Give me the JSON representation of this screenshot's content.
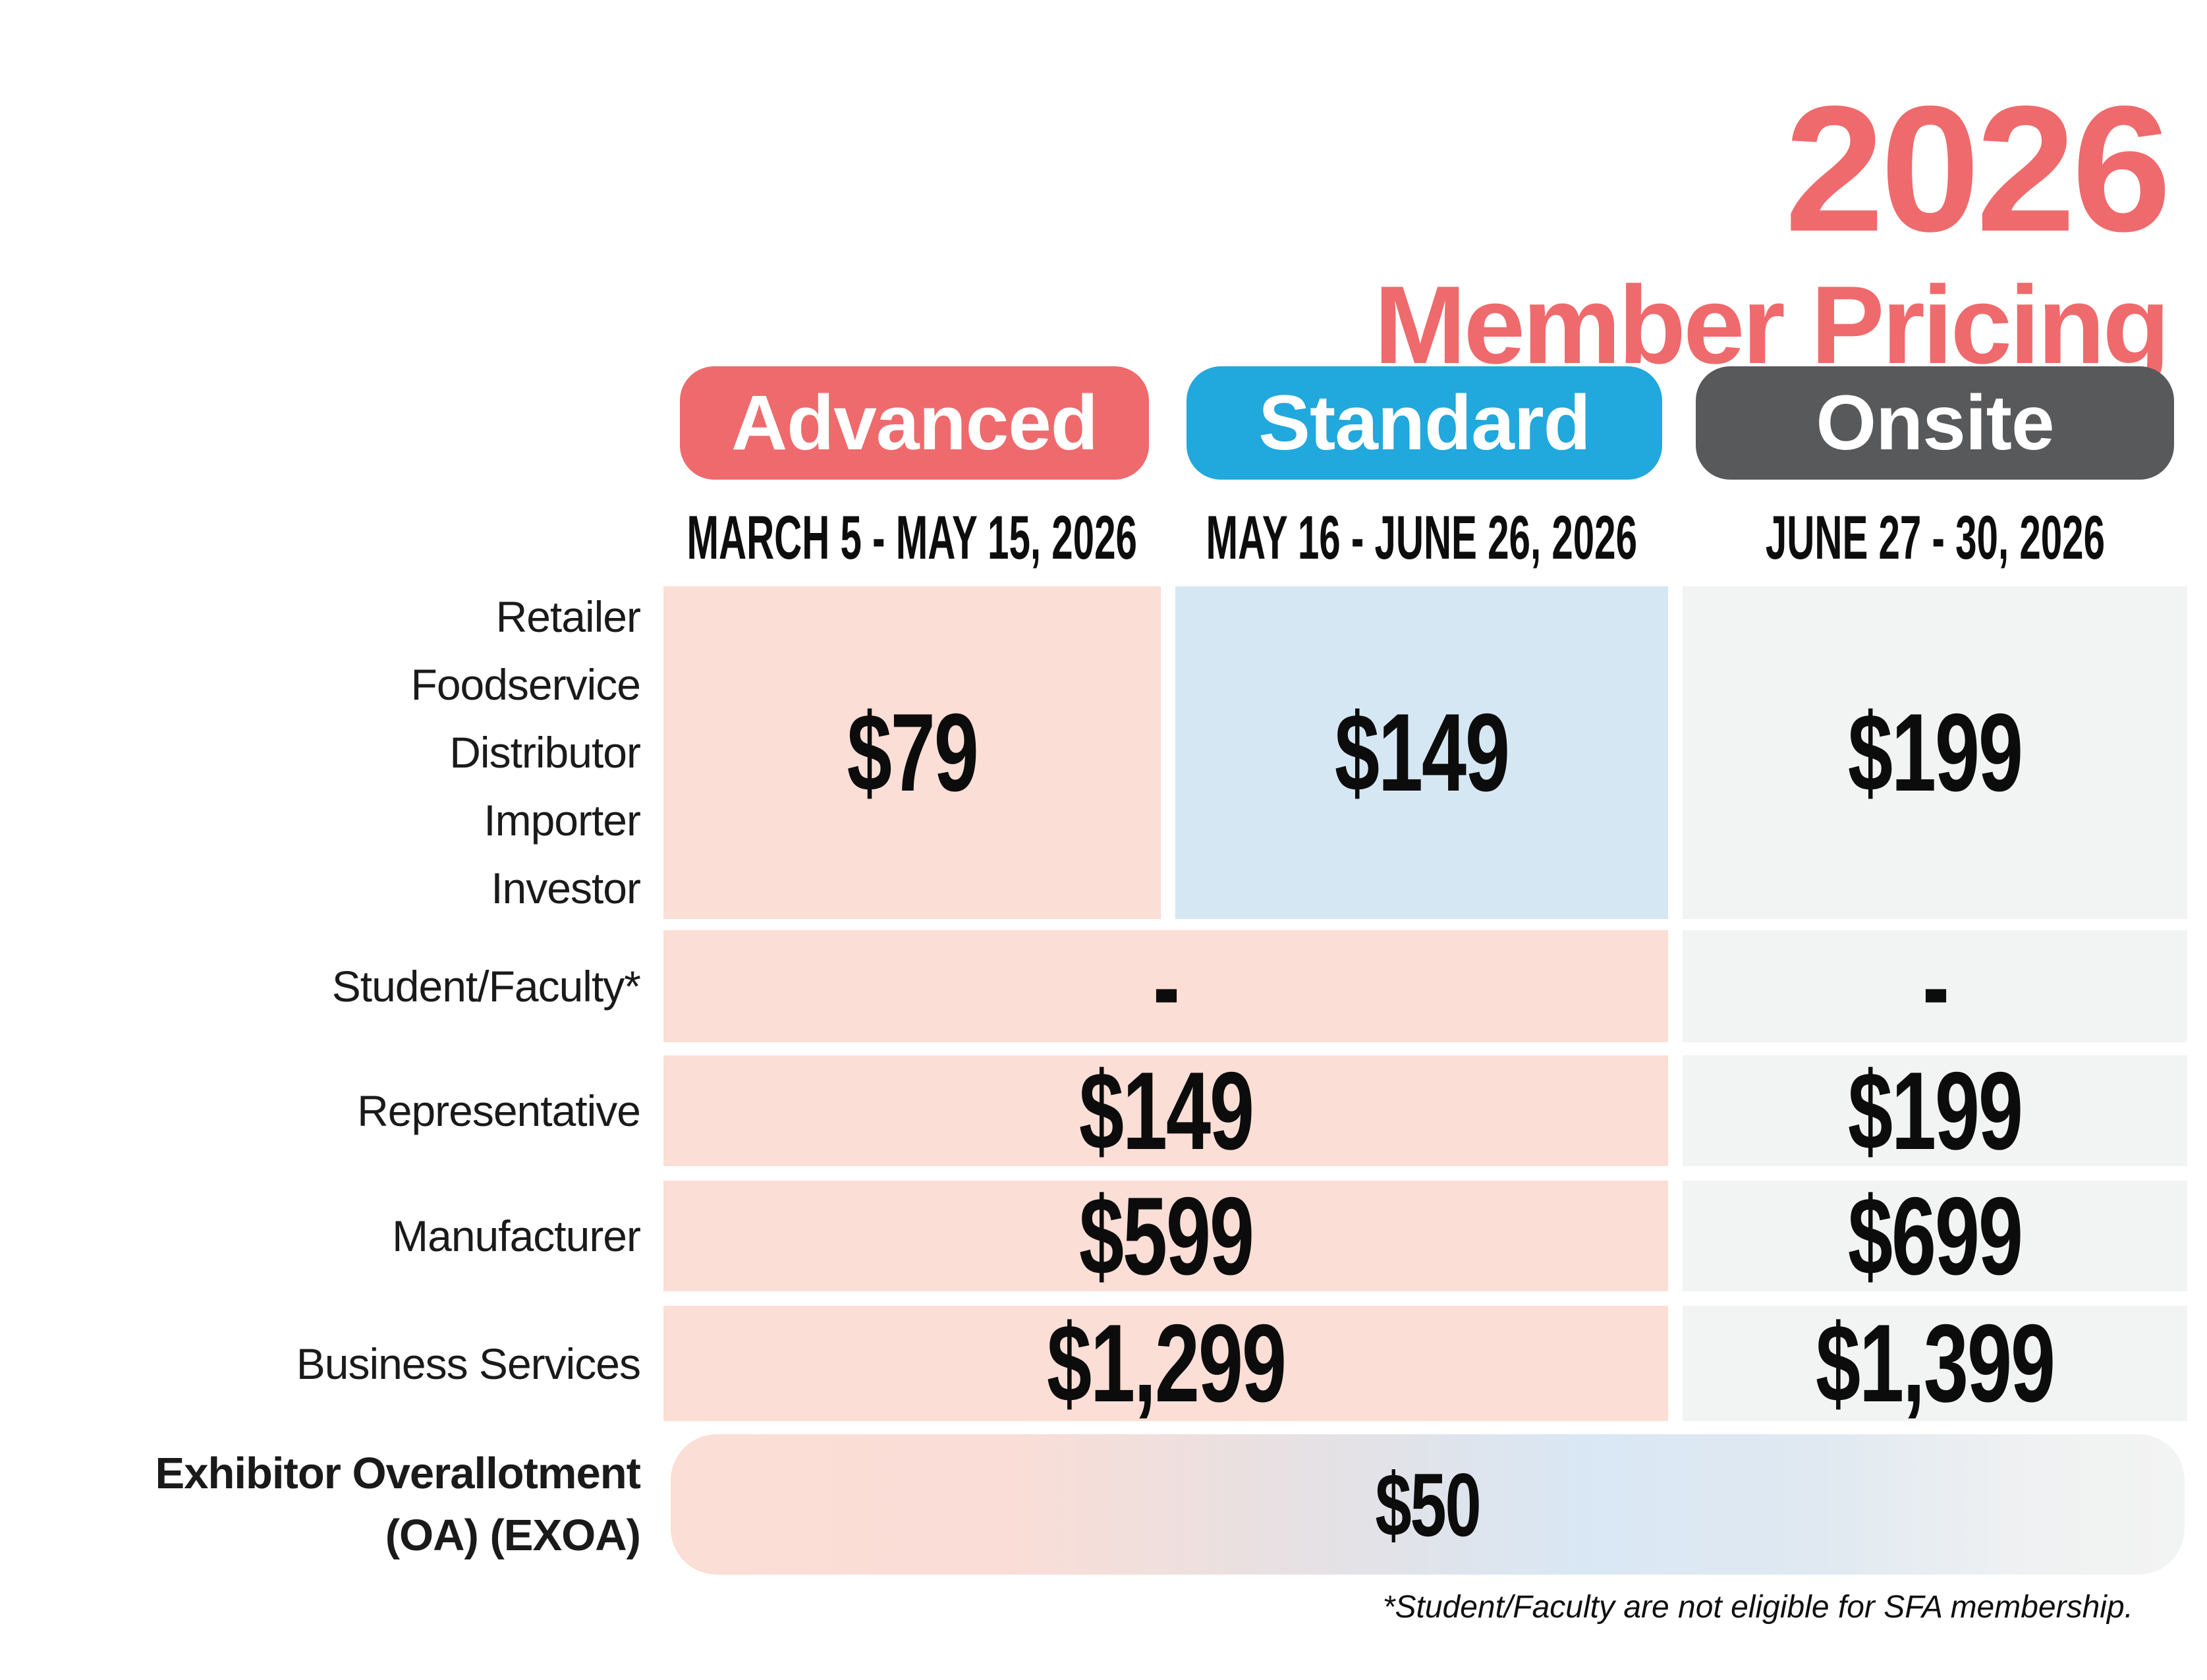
{
  "header": {
    "year": "2026",
    "title": "Member Pricing"
  },
  "columns": [
    {
      "name": "Advanced",
      "date_range": "MARCH 5 - MAY 15, 2026",
      "pill_color": "#EF6A6C"
    },
    {
      "name": "Standard",
      "date_range": "MAY 16 - JUNE 26, 2026",
      "pill_color": "#21A8DC"
    },
    {
      "name": "Onsite",
      "date_range": "JUNE 27 - 30, 2026",
      "pill_color": "#58595B"
    }
  ],
  "rows": {
    "member_types": {
      "labels": [
        "Retailer",
        "Foodservice",
        "Distributor",
        "Importer",
        "Investor"
      ],
      "advanced": "$79",
      "standard": "$149",
      "onsite": "$199"
    },
    "student_faculty": {
      "label": "Student/Faculty*",
      "advanced_standard": "-",
      "onsite": "-"
    },
    "representative": {
      "label": "Representative",
      "advanced_standard": "$149",
      "onsite": "$199"
    },
    "manufacturer": {
      "label": "Manufacturer",
      "advanced_standard": "$599",
      "onsite": "$699"
    },
    "business_services": {
      "label": "Business Services",
      "advanced_standard": "$1,299",
      "onsite": "$1,399"
    },
    "exhibitor_overallotment": {
      "label_line1": "Exhibitor Overallotment",
      "label_line2": "(OA) (EXOA)",
      "all_columns": "$50"
    }
  },
  "footnote": "*Student/Faculty are not eligible for SFA membership.",
  "colors": {
    "accent_coral": "#EF6A6C",
    "accent_blue": "#21A8DC",
    "accent_dark_gray": "#58595B",
    "cell_pink": "#FBDED6",
    "cell_blue": "#D6E7F4",
    "cell_gray": "#F2F3F3",
    "text_black": "#0c0c0c",
    "background": "#ffffff"
  },
  "chart_data": {
    "type": "table",
    "title": "2026 Member Pricing",
    "columns": [
      "Member Type",
      "Advanced (March 5 - May 15, 2026)",
      "Standard (May 16 - June 26, 2026)",
      "Onsite (June 27 - 30, 2026)"
    ],
    "rows": [
      [
        "Retailer / Foodservice / Distributor / Importer / Investor",
        "$79",
        "$149",
        "$199"
      ],
      [
        "Student/Faculty*",
        "-",
        "-",
        "-"
      ],
      [
        "Representative",
        "$149",
        "$149",
        "$199"
      ],
      [
        "Manufacturer",
        "$599",
        "$599",
        "$699"
      ],
      [
        "Business Services",
        "$1,299",
        "$1,299",
        "$1,399"
      ],
      [
        "Exhibitor Overallotment (OA) (EXOA)",
        "$50",
        "$50",
        "$50"
      ]
    ],
    "notes": "Advanced and Standard columns share one merged cell for Student/Faculty, Representative, Manufacturer and Business Services rows; Exhibitor Overallotment $50 spans all three columns."
  }
}
